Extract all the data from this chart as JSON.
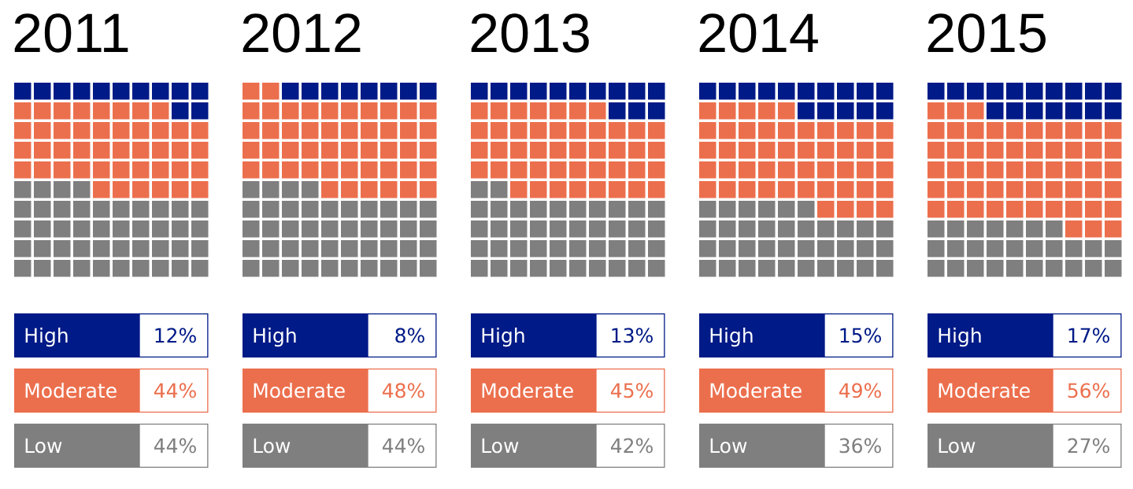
{
  "chart_data": [
    {
      "type": "other",
      "title": "2011",
      "categories": [
        "High",
        "Moderate",
        "Low"
      ],
      "values": [
        12,
        44,
        44
      ],
      "colors": [
        "#001a87",
        "#ec6f4d",
        "#7f7f7f"
      ],
      "value_labels": [
        "12%",
        "44%",
        "44%"
      ]
    },
    {
      "type": "other",
      "title": "2012",
      "categories": [
        "High",
        "Moderate",
        "Low"
      ],
      "values": [
        8,
        48,
        44
      ],
      "colors": [
        "#001a87",
        "#ec6f4d",
        "#7f7f7f"
      ],
      "value_labels": [
        "8%",
        "48%",
        "44%"
      ]
    },
    {
      "type": "other",
      "title": "2013",
      "categories": [
        "High",
        "Moderate",
        "Low"
      ],
      "values": [
        13,
        45,
        42
      ],
      "colors": [
        "#001a87",
        "#ec6f4d",
        "#7f7f7f"
      ],
      "value_labels": [
        "13%",
        "45%",
        "42%"
      ]
    },
    {
      "type": "other",
      "title": "2014",
      "categories": [
        "High",
        "Moderate",
        "Low"
      ],
      "values": [
        15,
        49,
        36
      ],
      "colors": [
        "#001a87",
        "#ec6f4d",
        "#7f7f7f"
      ],
      "value_labels": [
        "15%",
        "49%",
        "36%"
      ]
    },
    {
      "type": "other",
      "title": "2015",
      "categories": [
        "High",
        "Moderate",
        "Low"
      ],
      "values": [
        17,
        56,
        27
      ],
      "colors": [
        "#001a87",
        "#ec6f4d",
        "#7f7f7f"
      ],
      "value_labels": [
        "17%",
        "56%",
        "27%"
      ]
    }
  ]
}
